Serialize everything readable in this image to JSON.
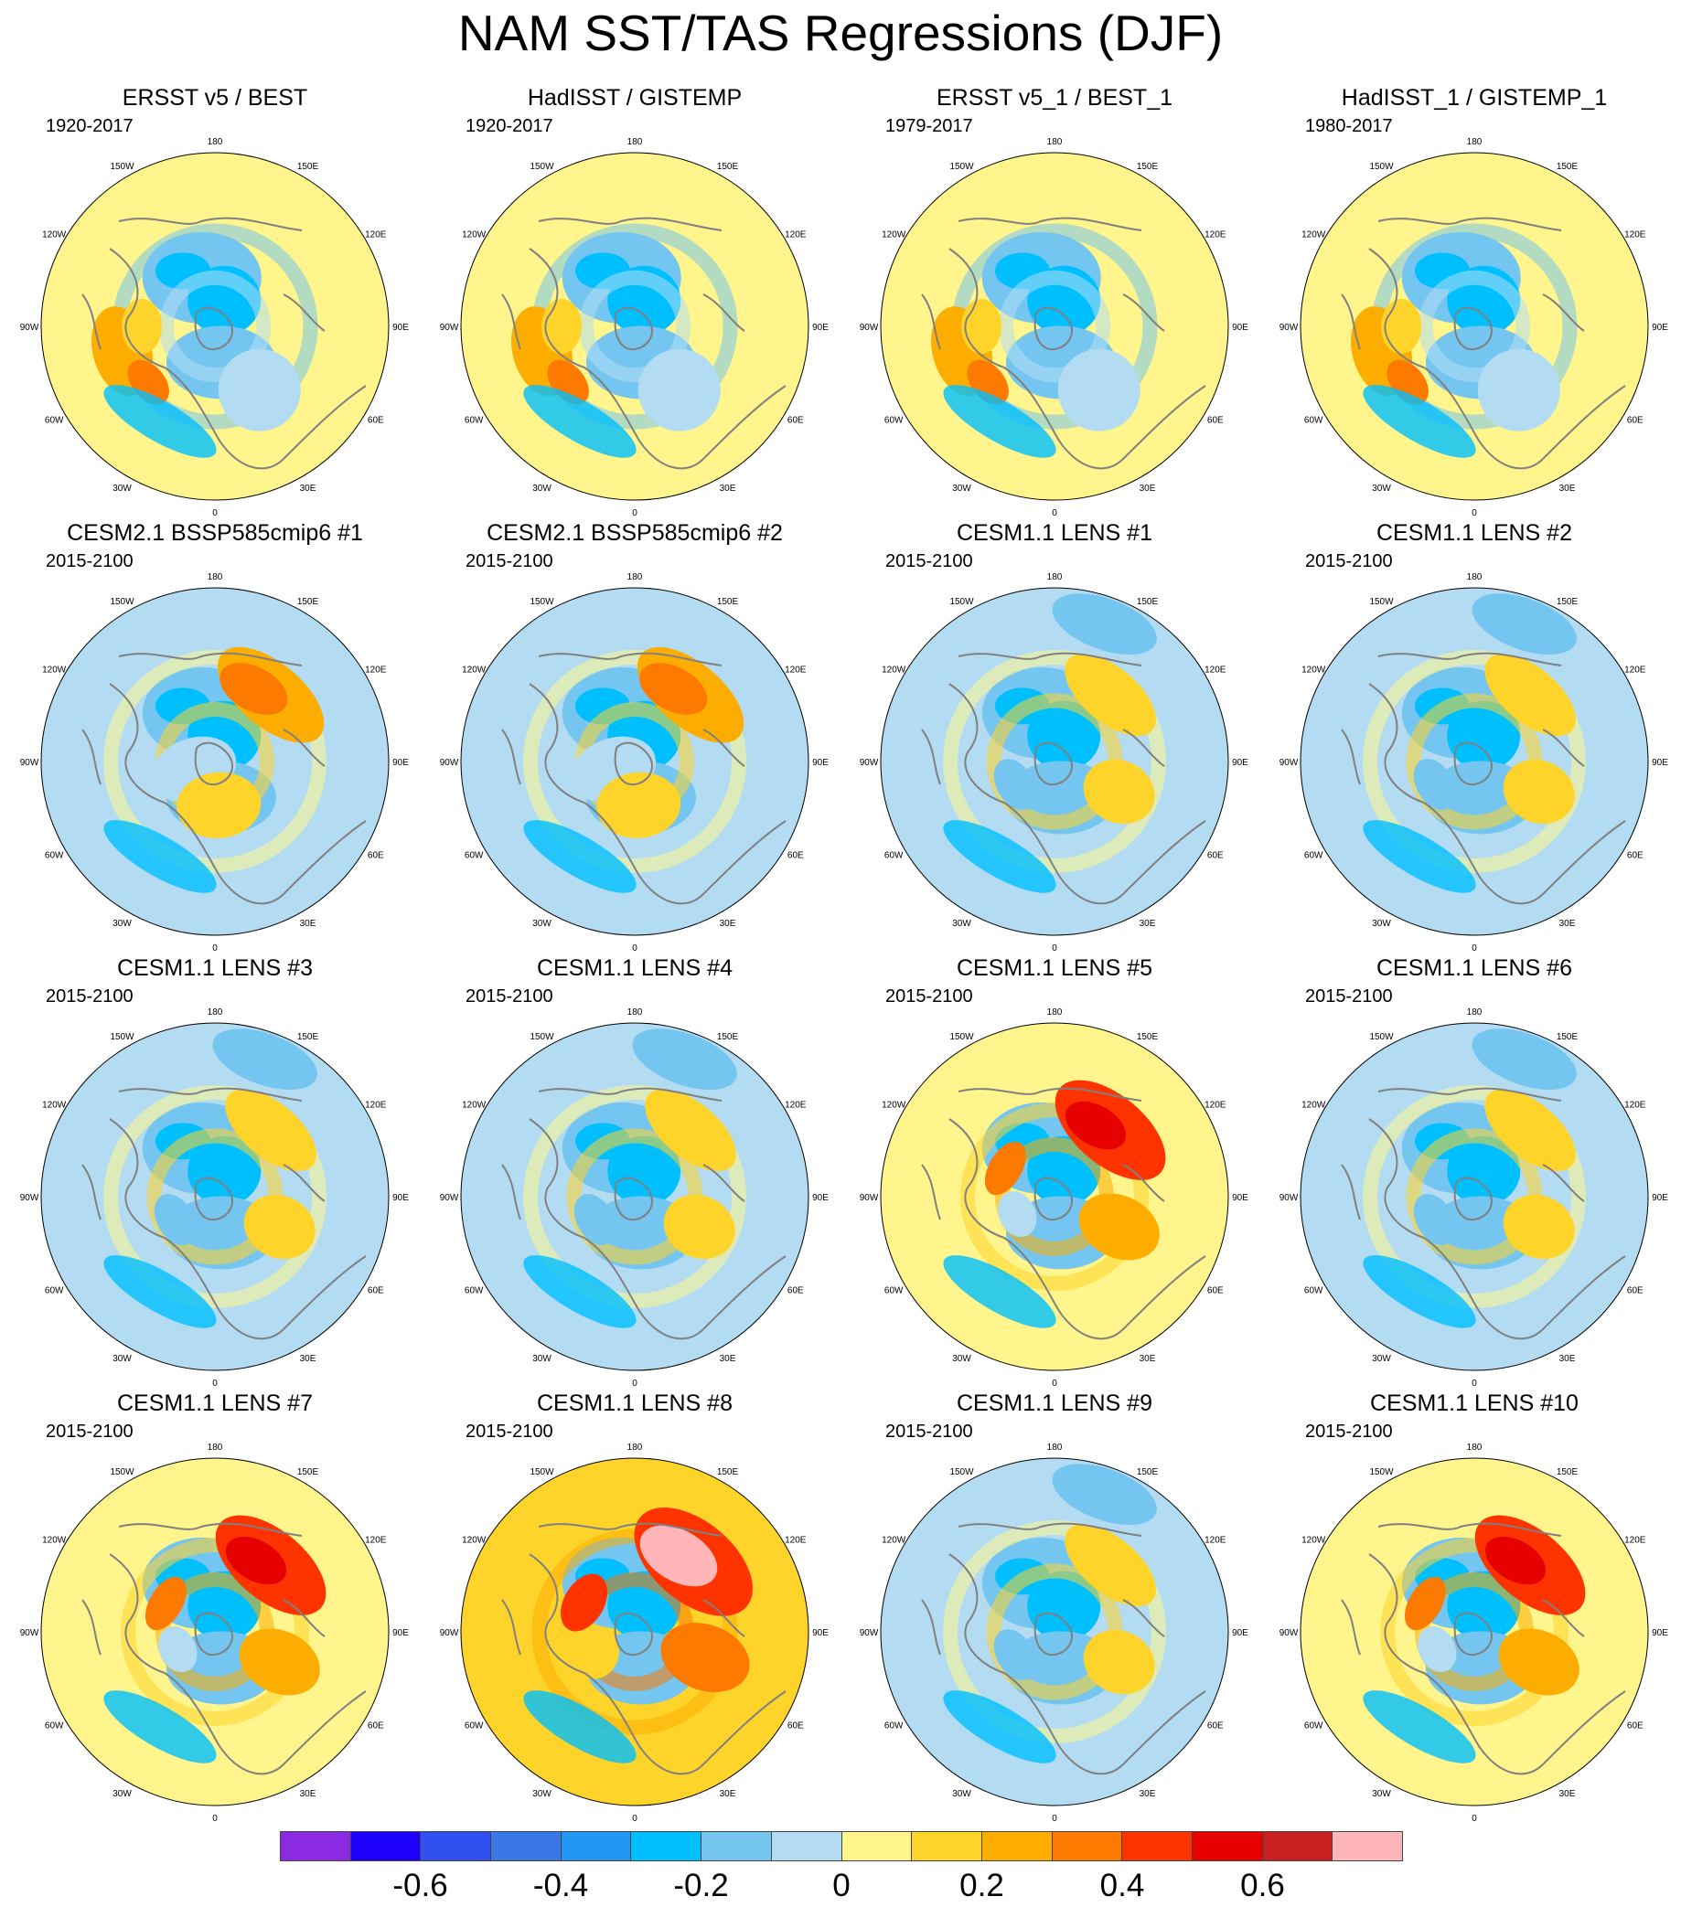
{
  "title": "NAM SST/TAS Regressions (DJF)",
  "panels": [
    {
      "title": "ERSST v5 / BEST",
      "period": "1920-2017",
      "variant": 0
    },
    {
      "title": "HadISST / GISTEMP",
      "period": "1920-2017",
      "variant": 0
    },
    {
      "title": "ERSST v5_1 / BEST_1",
      "period": "1979-2017",
      "variant": 0
    },
    {
      "title": "HadISST_1 / GISTEMP_1",
      "period": "1980-2017",
      "variant": 0
    },
    {
      "title": "CESM2.1 BSSP585cmip6 #1",
      "period": "2015-2100",
      "variant": 1
    },
    {
      "title": "CESM2.1 BSSP585cmip6 #2",
      "period": "2015-2100",
      "variant": 1
    },
    {
      "title": "CESM1.1 LENS #1",
      "period": "2015-2100",
      "variant": 2
    },
    {
      "title": "CESM1.1 LENS #2",
      "period": "2015-2100",
      "variant": 2
    },
    {
      "title": "CESM1.1 LENS #3",
      "period": "2015-2100",
      "variant": 2
    },
    {
      "title": "CESM1.1 LENS #4",
      "period": "2015-2100",
      "variant": 2
    },
    {
      "title": "CESM1.1 LENS #5",
      "period": "2015-2100",
      "variant": 3
    },
    {
      "title": "CESM1.1 LENS #6",
      "period": "2015-2100",
      "variant": 2
    },
    {
      "title": "CESM1.1 LENS #7",
      "period": "2015-2100",
      "variant": 3
    },
    {
      "title": "CESM1.1 LENS #8",
      "period": "2015-2100",
      "variant": 4
    },
    {
      "title": "CESM1.1 LENS #9",
      "period": "2015-2100",
      "variant": 2
    },
    {
      "title": "CESM1.1 LENS #10",
      "period": "2015-2100",
      "variant": 3
    }
  ],
  "longitude_labels": [
    "180",
    "150E",
    "120E",
    "90E",
    "60E",
    "30E",
    "0",
    "30W",
    "60W",
    "90W",
    "120W",
    "150W"
  ],
  "colorbar": {
    "colors": [
      "#8a2be2",
      "#1e00ff",
      "#3050f0",
      "#3a78e8",
      "#2196f3",
      "#00bfff",
      "#74c5ef",
      "#b3dcf2",
      "#fff58c",
      "#ffd42a",
      "#fcad00",
      "#fc7a00",
      "#ff3300",
      "#e60000",
      "#c82020",
      "#ffb6b9"
    ],
    "labels": [
      "-0.6",
      "-0.4",
      "-0.2",
      "0",
      "0.2",
      "0.4",
      "0.6"
    ]
  }
}
